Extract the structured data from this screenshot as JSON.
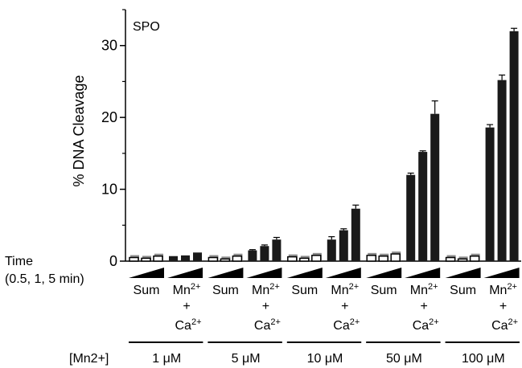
{
  "chart_data": {
    "type": "bar",
    "panel_label": "SPO",
    "ylabel": "% DNA Cleavage",
    "ylim": [
      0,
      35
    ],
    "yticks": [
      0,
      10,
      20,
      30
    ],
    "grid": false,
    "time_label_line1": "Time",
    "time_label_line2": "(0.5, 1, 5 min)",
    "conc_axis_label": "[Mn2+]",
    "sum_label": "Sum",
    "mnca_label_line1": "Mn2+",
    "mnca_label_line2": "+",
    "mnca_label_line3": "Ca2+",
    "time_points": [
      "0.5",
      "1",
      "5"
    ],
    "groups": [
      {
        "concentration": "1 μM",
        "sum_values": [
          0.5,
          0.4,
          0.7
        ],
        "sum_errors": [
          0,
          0,
          0
        ],
        "mnca_values": [
          0.7,
          0.8,
          1.2
        ],
        "mnca_errors": [
          0,
          0,
          0
        ]
      },
      {
        "concentration": "5 μM",
        "sum_values": [
          0.5,
          0.3,
          0.7
        ],
        "sum_errors": [
          0,
          0,
          0
        ],
        "mnca_values": [
          1.5,
          2.1,
          3.0
        ],
        "mnca_errors": [
          0.1,
          0.15,
          0.3
        ]
      },
      {
        "concentration": "10 μM",
        "sum_values": [
          0.6,
          0.4,
          0.8
        ],
        "sum_errors": [
          0,
          0,
          0
        ],
        "mnca_values": [
          3.0,
          4.3,
          7.3
        ],
        "mnca_errors": [
          0.4,
          0.2,
          0.5
        ]
      },
      {
        "concentration": "50 μM",
        "sum_values": [
          0.8,
          0.7,
          1.0
        ],
        "sum_errors": [
          0,
          0,
          0
        ],
        "mnca_values": [
          12.0,
          15.2,
          20.5
        ],
        "mnca_errors": [
          0.25,
          0.15,
          1.8
        ]
      },
      {
        "concentration": "100 μM",
        "sum_values": [
          0.5,
          0.3,
          0.7
        ],
        "sum_errors": [
          0,
          0,
          0
        ],
        "mnca_values": [
          18.6,
          25.2,
          32.0
        ],
        "mnca_errors": [
          0.4,
          0.7,
          0.4
        ]
      }
    ],
    "colors": {
      "sum_fill": "#ffffff",
      "sum_stroke": "#000000",
      "sum_shadow": "#8c8c8c",
      "mnca_fill": "#1a1a1a",
      "axis": "#000000"
    }
  }
}
